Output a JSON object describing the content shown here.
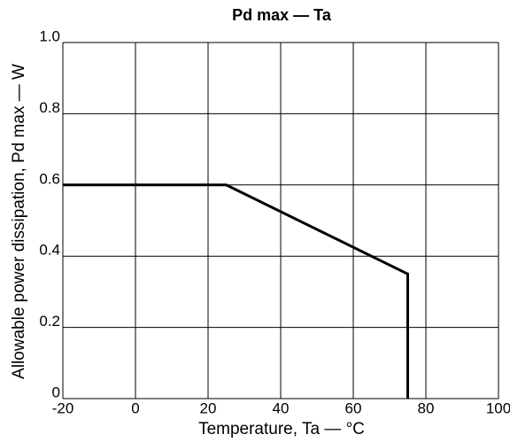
{
  "chart_data": {
    "type": "line",
    "title": "Pd max — Ta",
    "x_label": "Temperature, Ta — °C",
    "y_label": "Allowable power dissipation, Pd max — W",
    "x": [
      -20,
      25,
      75,
      75
    ],
    "series": [
      {
        "name": "Pd max",
        "color": "#000000",
        "values": [
          0.6,
          0.6,
          0.35,
          0
        ]
      }
    ],
    "xlim": [
      -20,
      100
    ],
    "xticks": [
      -20,
      0,
      20,
      40,
      60,
      80,
      100
    ],
    "ylim": [
      0,
      1
    ],
    "yticks": [
      0,
      0.2,
      0.4,
      0.6,
      0.8,
      {
        "value": 1,
        "label": "1.0"
      }
    ],
    "grid": true
  }
}
